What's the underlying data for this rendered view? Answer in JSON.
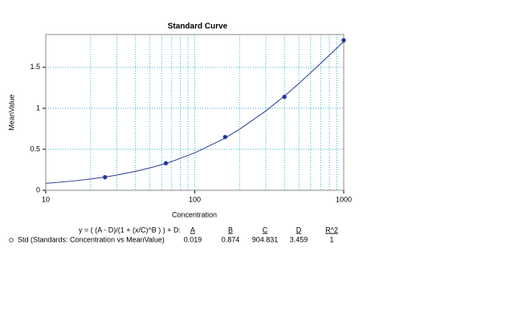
{
  "chart_data": {
    "type": "scatter",
    "title": "Standard Curve",
    "xlabel": "Concentration",
    "ylabel": "MeanValue",
    "xscale": "log",
    "xlim": [
      10,
      1000
    ],
    "ylim": [
      0,
      1.9
    ],
    "xticks": [
      10,
      100,
      1000
    ],
    "yticks": [
      0,
      0.5,
      1,
      1.5
    ],
    "grid": true,
    "grid_color": "#33b5c9",
    "series": [
      {
        "name": "Std (Standards: Concentration vs MeanValue)",
        "style": "marker",
        "color": "#1f2a8a",
        "x": [
          25,
          64,
          160,
          400,
          1000
        ],
        "values": [
          0.16,
          0.33,
          0.65,
          1.14,
          1.83
        ]
      },
      {
        "style": "line",
        "color": "#2b3a94",
        "x": [
          10,
          15,
          20,
          25,
          30,
          40,
          50,
          64,
          70,
          100,
          150,
          160,
          200,
          300,
          400,
          500,
          700,
          1000
        ],
        "values": [
          0.085,
          0.112,
          0.138,
          0.162,
          0.186,
          0.231,
          0.273,
          0.328,
          0.351,
          0.457,
          0.611,
          0.639,
          0.745,
          0.968,
          1.15,
          1.303,
          1.547,
          1.814
        ]
      }
    ],
    "fit": {
      "equation": "y = ( (A - D)/(1 + (x/C)^B ) ) + D:",
      "headers": [
        "A",
        "B",
        "C",
        "D",
        "R^2"
      ],
      "values": [
        0.019,
        0.874,
        904.831,
        3.459,
        1
      ]
    }
  }
}
